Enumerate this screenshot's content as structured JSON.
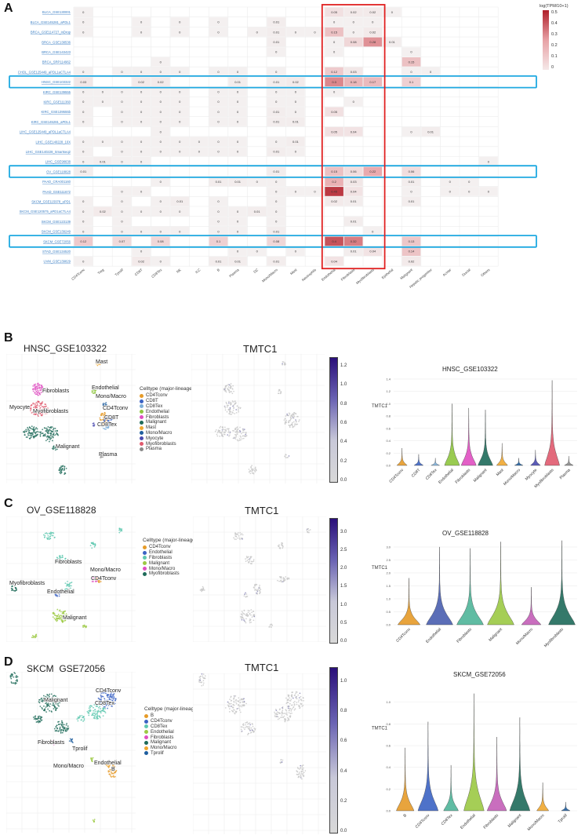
{
  "panels": {
    "a": "A",
    "b": "B",
    "c": "C",
    "d": "D"
  },
  "heatmap_legend": {
    "title": "log(TPM/10+1)",
    "ticks": [
      "0.5",
      "0.4",
      "0.3",
      "0.2",
      "0.1",
      "0"
    ]
  },
  "chart_data": [
    {
      "type": "heatmap",
      "title": "",
      "rows": [
        "BLCA_GSE130001",
        "BLCA_GSE145281_aPDL1",
        "BRCA_GSE114727_inDrop",
        "BRCA_GSE138536",
        "BRCA_GSE143423",
        "BRCA_SRP114962",
        "CHOL_GSE125449_aPDL1aCTLA4",
        "HNSC_GSE103322",
        "KIRC_GSE139555",
        "KIRC_GSE111360",
        "KIRC_GSE139555b",
        "KIRC_GSE145281_aPDL1",
        "LIHC_GSE125449_aPDL1aCTLA4",
        "LIHC_GSE140228_10X",
        "LIHC_GSE140228_Smartseq2",
        "LIHC_GSE98638",
        "OV_GSE118828",
        "PAAD_CRA001160",
        "PAAD_GSE111672",
        "SKCM_GSE115978_aPD1",
        "SKCM_GSE120575_aPD1aCTLA4",
        "SKCM_GSE123139",
        "SKCM_GSE139249",
        "SKCM_GSE72056",
        "STAD_GSE134520",
        "UVM_GSE139829"
      ],
      "columns": [
        "CD4Tconv",
        "Treg",
        "Tprolif",
        "CD8T",
        "CD8Tex",
        "NK",
        "ILC",
        "B",
        "Plasma",
        "DC",
        "Mono/Macro",
        "Mast",
        "Neutrophils",
        "Endothelial",
        "Fibroblasts",
        "Myofibroblasts",
        "Epithelial",
        "Malignant",
        "Hepatic progenitor",
        "Acinar",
        "Ductal",
        "Others"
      ],
      "cells": [
        [
          0,
          null,
          null,
          null,
          null,
          null,
          null,
          null,
          null,
          null,
          null,
          null,
          null,
          0.05,
          0.02,
          0.02,
          0,
          null,
          null,
          null,
          null,
          null
        ],
        [
          0,
          null,
          null,
          0,
          null,
          0,
          null,
          0,
          null,
          null,
          0.01,
          null,
          null,
          0,
          0,
          0,
          null,
          null,
          null,
          null,
          null,
          null
        ],
        [
          0,
          null,
          null,
          0,
          null,
          0,
          null,
          0,
          null,
          0,
          0.01,
          0,
          0,
          0.15,
          0,
          0.02,
          null,
          null,
          null,
          null,
          null,
          null
        ],
        [
          null,
          null,
          null,
          null,
          null,
          null,
          null,
          null,
          null,
          null,
          0.01,
          null,
          null,
          0,
          0.08,
          0.28,
          0.01,
          null,
          null,
          null,
          null,
          null
        ],
        [
          null,
          null,
          null,
          null,
          null,
          null,
          null,
          null,
          null,
          null,
          0,
          null,
          null,
          0,
          null,
          null,
          null,
          0,
          null,
          null,
          null,
          null
        ],
        [
          null,
          null,
          null,
          null,
          0,
          null,
          null,
          null,
          null,
          null,
          null,
          null,
          null,
          null,
          null,
          null,
          null,
          0.15,
          null,
          null,
          null,
          null
        ],
        [
          0,
          null,
          0,
          0,
          0,
          0,
          null,
          0,
          0,
          null,
          0,
          null,
          null,
          0.12,
          0.03,
          null,
          null,
          0,
          0,
          null,
          null,
          null
        ],
        [
          0.03,
          null,
          null,
          0.02,
          0.02,
          null,
          null,
          null,
          0.01,
          null,
          0.01,
          0.02,
          null,
          0.3,
          0.18,
          0.17,
          null,
          0.1,
          null,
          null,
          null,
          null
        ],
        [
          0,
          0,
          0,
          0,
          0,
          0,
          null,
          0,
          0,
          null,
          0,
          0,
          null,
          0,
          null,
          null,
          null,
          null,
          null,
          null,
          null,
          null
        ],
        [
          0,
          0,
          0,
          0,
          0,
          0,
          null,
          0,
          0,
          null,
          0,
          0,
          null,
          null,
          0,
          null,
          null,
          null,
          null,
          null,
          null,
          null
        ],
        [
          0,
          null,
          0,
          0,
          0,
          0,
          null,
          0,
          0,
          null,
          0.01,
          0,
          null,
          0.05,
          null,
          null,
          null,
          null,
          null,
          null,
          null,
          null
        ],
        [
          0,
          null,
          0,
          0,
          0,
          0,
          null,
          0,
          0,
          null,
          0.01,
          0.01,
          null,
          null,
          null,
          null,
          null,
          null,
          null,
          null,
          null,
          null
        ],
        [
          null,
          null,
          null,
          null,
          0,
          null,
          null,
          null,
          null,
          null,
          null,
          null,
          null,
          0.05,
          0.04,
          null,
          null,
          0,
          0.01,
          null,
          null,
          null
        ],
        [
          0,
          0,
          0,
          0,
          0,
          0,
          0,
          0,
          0,
          null,
          0,
          0.01,
          null,
          null,
          null,
          null,
          null,
          null,
          null,
          null,
          null,
          null
        ],
        [
          0,
          null,
          0,
          0,
          0,
          0,
          0,
          0,
          0,
          null,
          0.01,
          0,
          null,
          null,
          null,
          null,
          null,
          null,
          null,
          null,
          null,
          null
        ],
        [
          0,
          0.01,
          0,
          0,
          null,
          null,
          null,
          null,
          null,
          null,
          null,
          null,
          null,
          null,
          null,
          null,
          null,
          null,
          null,
          null,
          null,
          0
        ],
        [
          0.01,
          null,
          null,
          null,
          null,
          null,
          null,
          null,
          null,
          null,
          0.01,
          null,
          null,
          0.15,
          0.06,
          0.22,
          null,
          0.06,
          null,
          null,
          null,
          null
        ],
        [
          null,
          null,
          null,
          null,
          0,
          null,
          null,
          0.01,
          0.01,
          0,
          0,
          null,
          null,
          0.2,
          0.03,
          null,
          null,
          0.01,
          null,
          0,
          0,
          null
        ],
        [
          null,
          null,
          0,
          0,
          null,
          null,
          null,
          null,
          null,
          null,
          0,
          0,
          0,
          0.45,
          0.04,
          null,
          null,
          0,
          null,
          0,
          0,
          0
        ],
        [
          0,
          null,
          0,
          null,
          0,
          0.01,
          null,
          0,
          null,
          null,
          0,
          null,
          null,
          0.02,
          0.01,
          null,
          null,
          0.01,
          null,
          null,
          null,
          null
        ],
        [
          0,
          0.02,
          0,
          0,
          0,
          0,
          null,
          0,
          0,
          0.01,
          0,
          null,
          null,
          null,
          null,
          null,
          null,
          null,
          null,
          null,
          null,
          null
        ],
        [
          0,
          null,
          0,
          null,
          null,
          null,
          null,
          0,
          0,
          null,
          0,
          null,
          null,
          null,
          0.01,
          null,
          null,
          null,
          null,
          null,
          null,
          null
        ],
        [
          0,
          null,
          0,
          0,
          0,
          0,
          null,
          0,
          0,
          null,
          0.01,
          null,
          null,
          null,
          null,
          0,
          null,
          null,
          null,
          null,
          null,
          null
        ],
        [
          0.12,
          null,
          0.07,
          null,
          0.08,
          null,
          null,
          0.1,
          null,
          null,
          0.08,
          null,
          null,
          0.4,
          0.32,
          null,
          null,
          0.13,
          null,
          null,
          null,
          null
        ],
        [
          null,
          null,
          null,
          0,
          null,
          null,
          null,
          null,
          0,
          0,
          null,
          0,
          null,
          null,
          0.01,
          0.04,
          null,
          0.14,
          null,
          null,
          null,
          null
        ],
        [
          0,
          null,
          null,
          0.02,
          0,
          null,
          null,
          0.01,
          0.01,
          null,
          0.01,
          null,
          null,
          0.04,
          null,
          null,
          null,
          0.02,
          null,
          null,
          null,
          null
        ]
      ],
      "highlighted_rows": [
        "HNSC_GSE103322",
        "OV_GSE118828",
        "SKCM_GSE72056"
      ],
      "highlighted_columns": [
        "Endothelial",
        "Fibroblasts",
        "Myofibroblasts"
      ],
      "colorscale_range": [
        0,
        0.5
      ]
    },
    {
      "type": "scatter",
      "title": "HNSC_GSE103322",
      "legend_title": "Celltype (major-lineage)",
      "legend": [
        {
          "name": "CD4Tconv",
          "color": "#e69b29"
        },
        {
          "name": "CD8T",
          "color": "#3b63c4"
        },
        {
          "name": "CD8Tex",
          "color": "#7fb0d9"
        },
        {
          "name": "Endothelial",
          "color": "#8ec63f"
        },
        {
          "name": "Fibroblasts",
          "color": "#e04fc2"
        },
        {
          "name": "Malignant",
          "color": "#1f6b5a"
        },
        {
          "name": "Mast",
          "color": "#f0a830"
        },
        {
          "name": "Mono/Macro",
          "color": "#1f5e9e"
        },
        {
          "name": "Myocyte",
          "color": "#4a4ab0"
        },
        {
          "name": "Myofibroblasts",
          "color": "#e05a6e"
        },
        {
          "name": "Plasma",
          "color": "#8a8a8a"
        }
      ],
      "cluster_labels": [
        "Mast",
        "Fibroblasts",
        "Endothelial",
        "Myocyte",
        "Mono/Macro",
        "Myofibroblasts",
        "CD4Tconv",
        "CD8T",
        "CD8Tex",
        "Malignant",
        "Plasma"
      ]
    },
    {
      "type": "scatter",
      "title": "TMTC1",
      "colorbar_ticks": [
        "1.2",
        "1.0",
        "0.8",
        "0.6",
        "0.4",
        "0.2",
        "0.0"
      ],
      "colorbar_range": [
        0,
        1.3
      ]
    },
    {
      "type": "violin",
      "title": "HNSC_GSE103322",
      "ylabel": "TMTC1",
      "yticks": [
        "1.4",
        "1.2",
        "1.0",
        "0.8",
        "0.6",
        "0.4",
        "0.2",
        "0.0"
      ],
      "ylim": [
        0,
        1.45
      ],
      "categories": [
        "CD4Tconv",
        "CD8T",
        "CD8Tex",
        "Endothelial",
        "Fibroblasts",
        "Malignant",
        "Mast",
        "Mono/Macro",
        "Myocyte",
        "Myofibroblasts",
        "Plasma"
      ],
      "max_values": [
        0.28,
        0.18,
        0.12,
        1.0,
        0.93,
        0.9,
        0.36,
        0.12,
        0.25,
        1.38,
        0.15
      ],
      "colors": [
        "#e69b29",
        "#3b63c4",
        "#7fb0d9",
        "#8ec63f",
        "#e04fc2",
        "#1f6b5a",
        "#f0a830",
        "#1f5e9e",
        "#4a4ab0",
        "#e05a6e",
        "#8a8a8a"
      ]
    },
    {
      "type": "scatter",
      "title": "OV_GSE118828",
      "legend_title": "Celltype (major-lineage)",
      "legend": [
        {
          "name": "CD4Tconv",
          "color": "#e69b29"
        },
        {
          "name": "Endothelial",
          "color": "#3b63c4"
        },
        {
          "name": "Fibroblasts",
          "color": "#5fc8b0"
        },
        {
          "name": "Malignant",
          "color": "#9cc944"
        },
        {
          "name": "Mono/Macro",
          "color": "#e04fc2"
        },
        {
          "name": "Myofibroblasts",
          "color": "#1f6b5a"
        }
      ],
      "cluster_labels": [
        "Fibroblasts",
        "Mono/Macro",
        "CD4Tconv",
        "Myofibroblasts",
        "Endothelial",
        "Malignant"
      ]
    },
    {
      "type": "scatter",
      "title": "TMTC1",
      "colorbar_ticks": [
        "3.0",
        "2.5",
        "2.0",
        "1.5",
        "1.0",
        "0.5",
        "0.0"
      ],
      "colorbar_range": [
        0,
        3.4
      ]
    },
    {
      "type": "violin",
      "title": "OV_GSE118828",
      "ylabel": "TMTC1",
      "yticks": [
        "3.0",
        "2.5",
        "2.0",
        "1.5",
        "1.0",
        "0.5",
        "0.0"
      ],
      "ylim": [
        0,
        3.3
      ],
      "categories": [
        "CD4Tconv",
        "Endothelial",
        "Fibroblasts",
        "Malignant",
        "Mono/Macro",
        "Myofibroblasts"
      ],
      "max_values": [
        1.8,
        3.0,
        2.95,
        3.2,
        1.45,
        3.25
      ],
      "colors": [
        "#e69b29",
        "#4a5fb0",
        "#4fb59a",
        "#9cc944",
        "#c45fb8",
        "#1f6b5a"
      ]
    },
    {
      "type": "scatter",
      "title": "SKCM_GSE72056",
      "legend_title": "Celltype (major-lineage)",
      "legend": [
        {
          "name": "B",
          "color": "#e69b29"
        },
        {
          "name": "CD4Tconv",
          "color": "#3b63c4"
        },
        {
          "name": "CD8Tex",
          "color": "#5fc8b0"
        },
        {
          "name": "Endothelial",
          "color": "#9cc944"
        },
        {
          "name": "Fibroblasts",
          "color": "#e04fc2"
        },
        {
          "name": "Malignant",
          "color": "#1f6b5a"
        },
        {
          "name": "Mono/Macro",
          "color": "#f0a830"
        },
        {
          "name": "Tprolif",
          "color": "#1f5e9e"
        }
      ],
      "cluster_labels": [
        "Malignant",
        "CD4Tconv",
        "CD8Tex",
        "Fibroblasts",
        "Tprolif",
        "Endothelial",
        "Mono/Macro",
        "B"
      ]
    },
    {
      "type": "scatter",
      "title": "TMTC1",
      "colorbar_ticks": [
        "1.0",
        "0.8",
        "0.6",
        "0.4",
        "0.2",
        "0.0"
      ],
      "colorbar_range": [
        0,
        1.1
      ]
    },
    {
      "type": "violin",
      "title": "SKCM_GSE72056",
      "ylabel": "TMTC1",
      "yticks": [
        "1.0",
        "0.8",
        "0.6",
        "0.4",
        "0.2",
        "0.0"
      ],
      "ylim": [
        0,
        1.15
      ],
      "categories": [
        "B",
        "CD4Tconv",
        "CD8Tex",
        "Endothelial",
        "Fibroblasts",
        "Malignant",
        "Mono/Macro",
        "Tprolif"
      ],
      "max_values": [
        0.58,
        0.82,
        0.42,
        1.08,
        0.68,
        0.86,
        0.26,
        0.08
      ],
      "colors": [
        "#e69b29",
        "#3b63c4",
        "#4fb59a",
        "#9cc944",
        "#c45fb8",
        "#1f6b5a",
        "#f0a830",
        "#1f5e9e"
      ]
    }
  ]
}
